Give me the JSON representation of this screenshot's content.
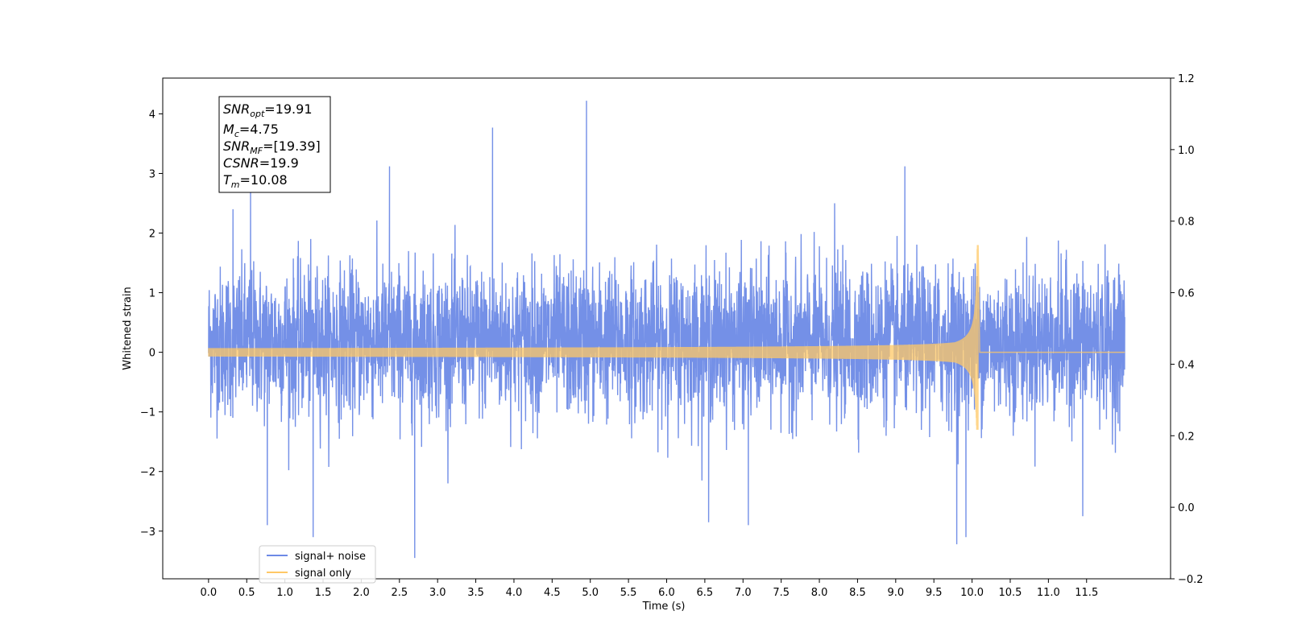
{
  "chart_data": {
    "type": "line",
    "xlabel": "Time (s)",
    "ylabel": "Whitened strain",
    "xlim": [
      -0.6,
      12.6
    ],
    "ylim": [
      -3.8,
      4.6
    ],
    "ylim_right": [
      -0.2,
      1.2
    ],
    "x_ticks": [
      0.0,
      0.5,
      1.0,
      1.5,
      2.0,
      2.5,
      3.0,
      3.5,
      4.0,
      4.5,
      5.0,
      5.5,
      6.0,
      6.5,
      7.0,
      7.5,
      8.0,
      8.5,
      9.0,
      9.5,
      10.0,
      10.5,
      11.0,
      11.5
    ],
    "x_tick_labels": [
      "0.0",
      "0.5",
      "1.0",
      "1.5",
      "2.0",
      "2.5",
      "3.0",
      "3.5",
      "4.0",
      "4.5",
      "5.0",
      "5.5",
      "6.0",
      "6.5",
      "7.0",
      "7.5",
      "8.0",
      "8.5",
      "9.0",
      "9.5",
      "10.0",
      "10.5",
      "11.0",
      "11.5"
    ],
    "y_ticks": [
      -3,
      -2,
      -1,
      0,
      1,
      2,
      3,
      4
    ],
    "y_tick_labels": [
      "−3",
      "−2",
      "−1",
      "0",
      "1",
      "2",
      "3",
      "4"
    ],
    "y_right_ticks": [
      0.0,
      0.2,
      0.4,
      0.6,
      0.8,
      1.0,
      1.2,
      -0.2
    ],
    "y_right_tick_labels": [
      "0.0",
      "0.2",
      "0.4",
      "0.6",
      "0.8",
      "1.0",
      "1.2",
      "−0.2"
    ],
    "grid": false,
    "legend_position": "lower-left",
    "series": [
      {
        "name": "signal+ noise",
        "color": "#6d8ae6",
        "kind": "noise",
        "t_range": [
          0.0,
          12.0
        ],
        "envelope_typical": [
          -1.6,
          2.2
        ],
        "spikes": [
          {
            "t": 0.55,
            "y": 2.7
          },
          {
            "t": 0.77,
            "y": -2.9
          },
          {
            "t": 1.37,
            "y": -3.1
          },
          {
            "t": 2.37,
            "y": 3.12
          },
          {
            "t": 2.7,
            "y": -3.45
          },
          {
            "t": 3.72,
            "y": 3.77
          },
          {
            "t": 4.95,
            "y": 4.22
          },
          {
            "t": 6.55,
            "y": -2.85
          },
          {
            "t": 7.07,
            "y": -2.9
          },
          {
            "t": 9.12,
            "y": 3.12
          },
          {
            "t": 9.8,
            "y": -3.22
          },
          {
            "t": 9.92,
            "y": -3.1
          },
          {
            "t": 11.45,
            "y": -2.75
          },
          {
            "t": 0.32,
            "y": 2.4
          },
          {
            "t": 8.2,
            "y": 2.5
          }
        ]
      },
      {
        "name": "signal only",
        "color": "#ffc866",
        "kind": "chirp",
        "t_range": [
          0.0,
          12.0
        ],
        "merger_time": 10.08,
        "amplitude_at_start": 0.07,
        "amplitude_peak": 1.8,
        "amplitude_trough": -1.3,
        "post_merger_value": 0.0
      }
    ],
    "info_box": [
      {
        "base": "SNR",
        "sub": "opt",
        "value": "=19.91"
      },
      {
        "base": "M",
        "sub": "c",
        "value": "=4.75"
      },
      {
        "base": "SNR",
        "sub": "MF",
        "value": "=[19.39]"
      },
      {
        "base": "CSNR",
        "sub": "",
        "value": "=19.9"
      },
      {
        "base": "T",
        "sub": "m",
        "value": "=10.08"
      }
    ]
  }
}
